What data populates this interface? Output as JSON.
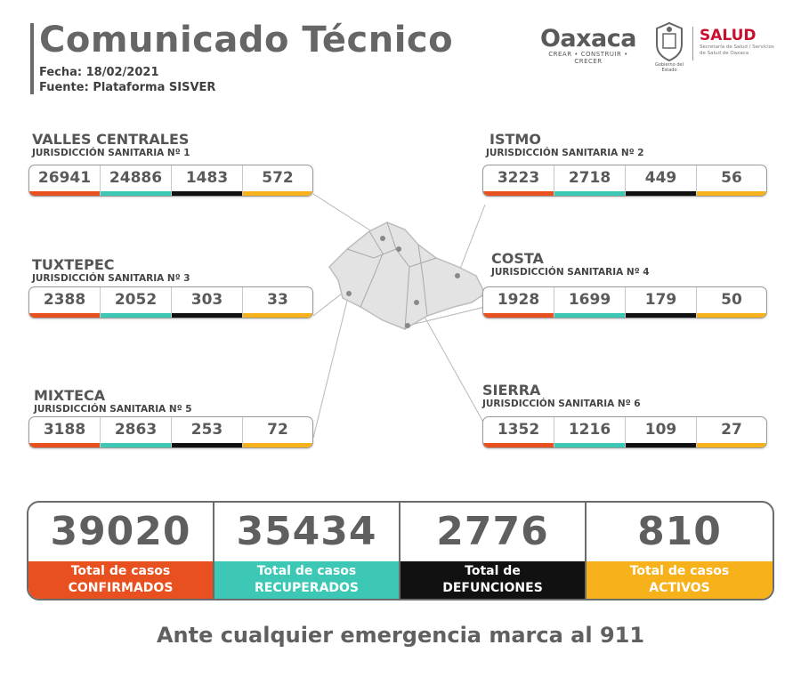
{
  "header": {
    "title": "Comunicado Técnico",
    "date": "Fecha: 18/02/2021",
    "source": "Fuente: Plataforma SISVER"
  },
  "logos": {
    "oaxaca_word": "Oaxaca",
    "oaxaca_tagline": "CREAR • CONSTRUIR • CRECER",
    "seal_caption": "Gobierno del Estado",
    "salud_word": "SALUD",
    "salud_sub": "Secretaría de Salud / Servicios de Salud de Oaxaca"
  },
  "colors": {
    "confirmed": "#e9501f",
    "recovered": "#3cc8b4",
    "deaths": "#111111",
    "active": "#f7b21b"
  },
  "regions": [
    {
      "name": "VALLES CENTRALES",
      "jurisdiction": "JURISDICCIÓN SANITARIA Nº 1",
      "values": [
        "26941",
        "24886",
        "1483",
        "572"
      ]
    },
    {
      "name": "ISTMO",
      "jurisdiction": "JURISDICCIÓN SANITARIA Nº 2",
      "values": [
        "3223",
        "2718",
        "449",
        "56"
      ]
    },
    {
      "name": "TUXTEPEC",
      "jurisdiction": "JURISDICCIÓN SANITARIA Nº 3",
      "values": [
        "2388",
        "2052",
        "303",
        "33"
      ]
    },
    {
      "name": "COSTA",
      "jurisdiction": "JURISDICCIÓN SANITARIA Nº 4",
      "values": [
        "1928",
        "1699",
        "179",
        "50"
      ]
    },
    {
      "name": "MIXTECA",
      "jurisdiction": "JURISDICCIÓN SANITARIA Nº 5",
      "values": [
        "3188",
        "2863",
        "253",
        "72"
      ]
    },
    {
      "name": "SIERRA",
      "jurisdiction": "JURISDICCIÓN SANITARIA Nº 6",
      "values": [
        "1352",
        "1216",
        "109",
        "27"
      ]
    }
  ],
  "totals": [
    {
      "value": "39020",
      "label_line1": "Total de casos",
      "label_line2": "CONFIRMADOS"
    },
    {
      "value": "35434",
      "label_line1": "Total de casos",
      "label_line2": "RECUPERADOS"
    },
    {
      "value": "2776",
      "label_line1": "Total de",
      "label_line2": "DEFUNCIONES"
    },
    {
      "value": "810",
      "label_line1": "Total de casos",
      "label_line2": "ACTIVOS"
    }
  ],
  "footer": "Ante cualquier emergencia marca al 911"
}
